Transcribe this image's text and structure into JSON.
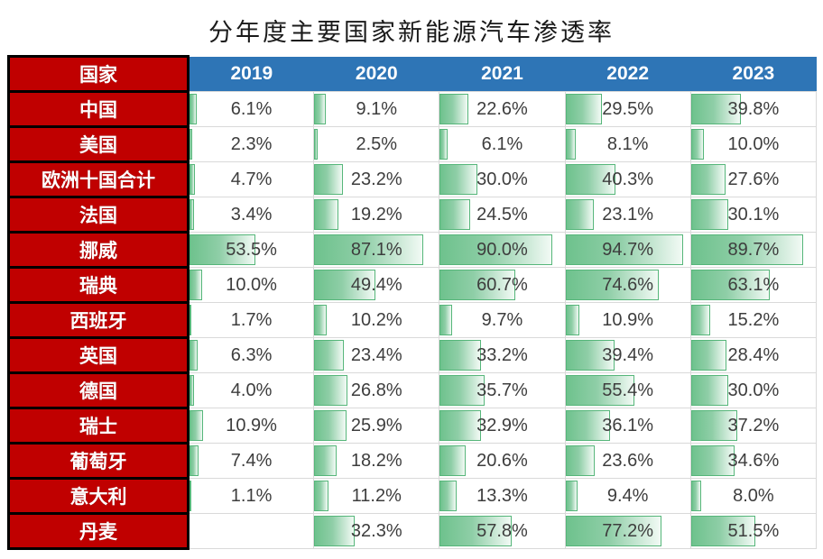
{
  "title": "分年度主要国家新能源汽车渗透率",
  "header": {
    "country_label": "国家"
  },
  "colors": {
    "country_column_bg": "#C00000",
    "country_column_border": "#000000",
    "year_header_bg": "#2E75B6",
    "header_text": "#FFFFFF",
    "bar_fill_start": "#6EC28D",
    "bar_fill_end": "#F2FAF5",
    "bar_border": "#56B67A",
    "grid_line": "#D9D9D9",
    "value_text": "#3D3D3D"
  },
  "chart_data": {
    "type": "table",
    "subtype": "data-bars",
    "title": "分年度主要国家新能源汽车渗透率",
    "categories": [
      "2019",
      "2020",
      "2021",
      "2022",
      "2023"
    ],
    "unit": "%",
    "bar_scale_range": [
      0,
      100
    ],
    "series": [
      {
        "name": "中国",
        "values": [
          6.1,
          9.1,
          22.6,
          29.5,
          39.8
        ]
      },
      {
        "name": "美国",
        "values": [
          2.3,
          2.5,
          6.1,
          8.1,
          10.0
        ]
      },
      {
        "name": "欧洲十国合计",
        "values": [
          4.7,
          23.2,
          30.0,
          40.3,
          27.6
        ]
      },
      {
        "name": "法国",
        "values": [
          3.4,
          19.2,
          24.5,
          23.1,
          30.1
        ]
      },
      {
        "name": "挪威",
        "values": [
          53.5,
          87.1,
          90.0,
          94.7,
          89.7
        ]
      },
      {
        "name": "瑞典",
        "values": [
          10.0,
          49.4,
          60.7,
          74.6,
          63.1
        ]
      },
      {
        "name": "西班牙",
        "values": [
          1.7,
          10.2,
          9.7,
          10.9,
          15.2
        ]
      },
      {
        "name": "英国",
        "values": [
          6.3,
          23.4,
          33.2,
          39.4,
          28.4
        ]
      },
      {
        "name": "德国",
        "values": [
          4.0,
          26.8,
          35.7,
          55.4,
          30.0
        ]
      },
      {
        "name": "瑞士",
        "values": [
          10.9,
          25.9,
          32.9,
          36.1,
          37.2
        ]
      },
      {
        "name": "葡萄牙",
        "values": [
          7.4,
          18.2,
          20.6,
          23.6,
          34.6
        ]
      },
      {
        "name": "意大利",
        "values": [
          1.1,
          11.2,
          13.3,
          9.4,
          8.0
        ]
      },
      {
        "name": "丹麦",
        "values": [
          null,
          32.3,
          57.8,
          77.2,
          51.5
        ]
      }
    ]
  }
}
